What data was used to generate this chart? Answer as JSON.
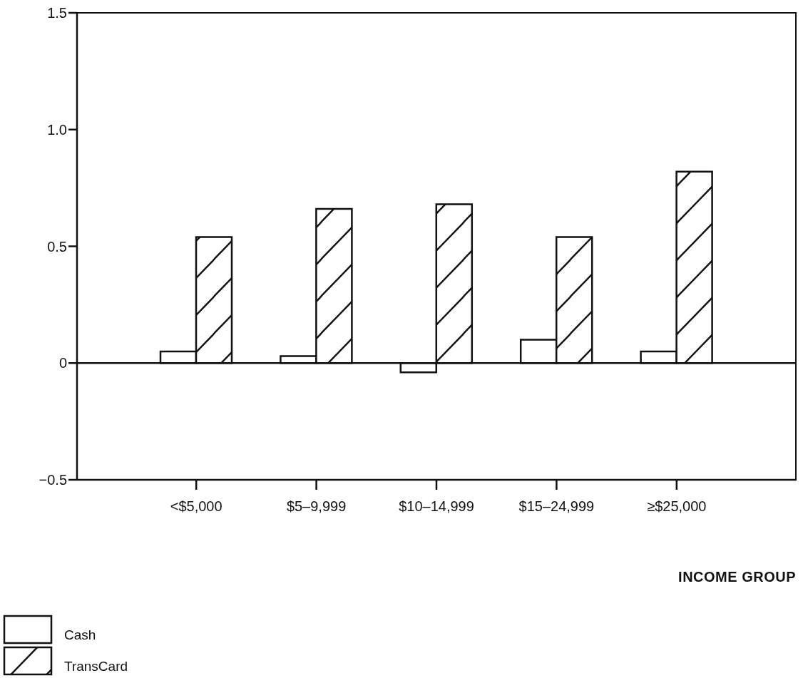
{
  "chart_data": {
    "type": "bar",
    "xlabel": "INCOME GROUP",
    "categories": [
      "<$5,000",
      "$5–9,999",
      "$10–14,999",
      "$15–24,999",
      "≥$25,000"
    ],
    "series": [
      {
        "name": "Cash",
        "color": "#ffffff",
        "values": [
          0.05,
          0.03,
          -0.04,
          0.1,
          0.05
        ]
      },
      {
        "name": "TransCard",
        "color": "#111111",
        "values": [
          0.54,
          0.66,
          0.68,
          0.54,
          0.82
        ]
      }
    ],
    "ylim": [
      -0.5,
      1.5
    ],
    "yticks": [
      {
        "value": -0.5,
        "label": "−0.5"
      },
      0,
      0.5,
      {
        "value": 1,
        "label": "1.0"
      },
      1.5
    ],
    "legend": "bottom left"
  }
}
